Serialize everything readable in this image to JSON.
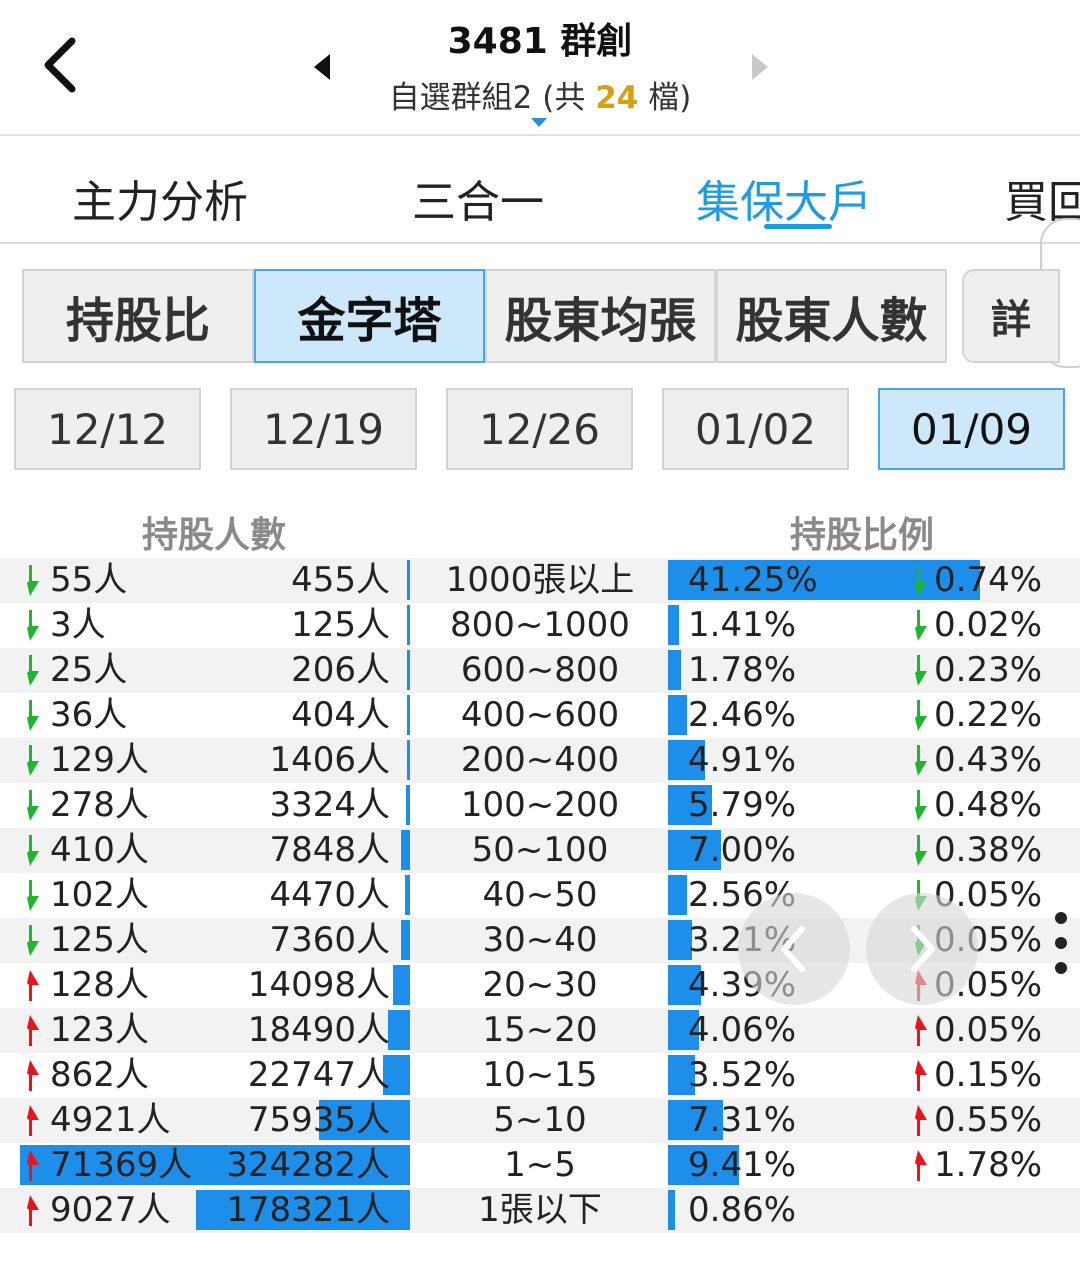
{
  "header": {
    "stock": "3481 群創",
    "group_prefix": "自選群組2 (共 ",
    "group_count": "24",
    "group_suffix": " 檔)",
    "back_icon": "chevron-left-icon",
    "prev_icon": "triangle-left-icon",
    "next_icon": "triangle-right-icon"
  },
  "main_tabs": [
    {
      "label": "主力分析",
      "active": false
    },
    {
      "label": "三合一",
      "active": false
    },
    {
      "label": "集保大戶",
      "active": true
    },
    {
      "label": "買回",
      "active": false
    }
  ],
  "sub_tabs": [
    {
      "label": "持股比",
      "active": false
    },
    {
      "label": "金字塔",
      "active": true
    },
    {
      "label": "股東均張",
      "active": false
    },
    {
      "label": "股東人數",
      "active": false
    },
    {
      "label": "詳",
      "active": false
    }
  ],
  "dates": [
    {
      "label": "12/12",
      "active": false
    },
    {
      "label": "12/19",
      "active": false
    },
    {
      "label": "12/26",
      "active": false
    },
    {
      "label": "01/02",
      "active": false
    },
    {
      "label": "01/09",
      "active": true
    }
  ],
  "columns": {
    "holders": "持股人數",
    "ratio": "持股比例"
  },
  "colors": {
    "accent": "#1d9be4",
    "bar": "#1d8fea",
    "up": "#e8141c",
    "down": "#1fb52c",
    "count_highlight": "#d6a014"
  },
  "rows": [
    {
      "holders_change": "55人",
      "holders_change_dir": "down",
      "holders": "455人",
      "holders_share": 0.0014,
      "level": "1000張以上",
      "ratio": "41.25%",
      "ratio_value": 41.25,
      "ratio_change": "0.74%",
      "ratio_change_dir": "down"
    },
    {
      "holders_change": "3人",
      "holders_change_dir": "down",
      "holders": "125人",
      "holders_share": 0.0004,
      "level": "800~1000",
      "ratio": "1.41%",
      "ratio_value": 1.41,
      "ratio_change": "0.02%",
      "ratio_change_dir": "down"
    },
    {
      "holders_change": "25人",
      "holders_change_dir": "down",
      "holders": "206人",
      "holders_share": 0.0006,
      "level": "600~800",
      "ratio": "1.78%",
      "ratio_value": 1.78,
      "ratio_change": "0.23%",
      "ratio_change_dir": "down"
    },
    {
      "holders_change": "36人",
      "holders_change_dir": "down",
      "holders": "404人",
      "holders_share": 0.0012,
      "level": "400~600",
      "ratio": "2.46%",
      "ratio_value": 2.46,
      "ratio_change": "0.22%",
      "ratio_change_dir": "down"
    },
    {
      "holders_change": "129人",
      "holders_change_dir": "down",
      "holders": "1406人",
      "holders_share": 0.0043,
      "level": "200~400",
      "ratio": "4.91%",
      "ratio_value": 4.91,
      "ratio_change": "0.43%",
      "ratio_change_dir": "down"
    },
    {
      "holders_change": "278人",
      "holders_change_dir": "down",
      "holders": "3324人",
      "holders_share": 0.0103,
      "level": "100~200",
      "ratio": "5.79%",
      "ratio_value": 5.79,
      "ratio_change": "0.48%",
      "ratio_change_dir": "down"
    },
    {
      "holders_change": "410人",
      "holders_change_dir": "down",
      "holders": "7848人",
      "holders_share": 0.0242,
      "level": "50~100",
      "ratio": "7.00%",
      "ratio_value": 7.0,
      "ratio_change": "0.38%",
      "ratio_change_dir": "down"
    },
    {
      "holders_change": "102人",
      "holders_change_dir": "down",
      "holders": "4470人",
      "holders_share": 0.0138,
      "level": "40~50",
      "ratio": "2.56%",
      "ratio_value": 2.56,
      "ratio_change": "0.05%",
      "ratio_change_dir": "down"
    },
    {
      "holders_change": "125人",
      "holders_change_dir": "down",
      "holders": "7360人",
      "holders_share": 0.0227,
      "level": "30~40",
      "ratio": "3.21%",
      "ratio_value": 3.21,
      "ratio_change": "0.05%",
      "ratio_change_dir": "down"
    },
    {
      "holders_change": "128人",
      "holders_change_dir": "up",
      "holders": "14098人",
      "holders_share": 0.0435,
      "level": "20~30",
      "ratio": "4.39%",
      "ratio_value": 4.39,
      "ratio_change": "0.05%",
      "ratio_change_dir": "up"
    },
    {
      "holders_change": "123人",
      "holders_change_dir": "up",
      "holders": "18490人",
      "holders_share": 0.057,
      "level": "15~20",
      "ratio": "4.06%",
      "ratio_value": 4.06,
      "ratio_change": "0.05%",
      "ratio_change_dir": "up"
    },
    {
      "holders_change": "862人",
      "holders_change_dir": "up",
      "holders": "22747人",
      "holders_share": 0.0701,
      "level": "10~15",
      "ratio": "3.52%",
      "ratio_value": 3.52,
      "ratio_change": "0.15%",
      "ratio_change_dir": "up"
    },
    {
      "holders_change": "4921人",
      "holders_change_dir": "up",
      "holders": "75935人",
      "holders_share": 0.2342,
      "level": "5~10",
      "ratio": "7.31%",
      "ratio_value": 7.31,
      "ratio_change": "0.55%",
      "ratio_change_dir": "up"
    },
    {
      "holders_change": "71369人",
      "holders_change_dir": "up",
      "holders": "324282人",
      "holders_share": 1.0,
      "level": "1~5",
      "ratio": "9.41%",
      "ratio_value": 9.41,
      "ratio_change": "1.78%",
      "ratio_change_dir": "up"
    },
    {
      "holders_change": "9027人",
      "holders_change_dir": "up",
      "holders": "178321人",
      "holders_share": 0.5499,
      "level": "1張以下",
      "ratio": "0.86%",
      "ratio_value": 0.86,
      "ratio_change": "",
      "ratio_change_dir": "none"
    }
  ],
  "floating": {
    "prev_icon": "chevron-left-icon",
    "next_icon": "chevron-right-icon",
    "more_icon": "more-vertical-icon"
  }
}
